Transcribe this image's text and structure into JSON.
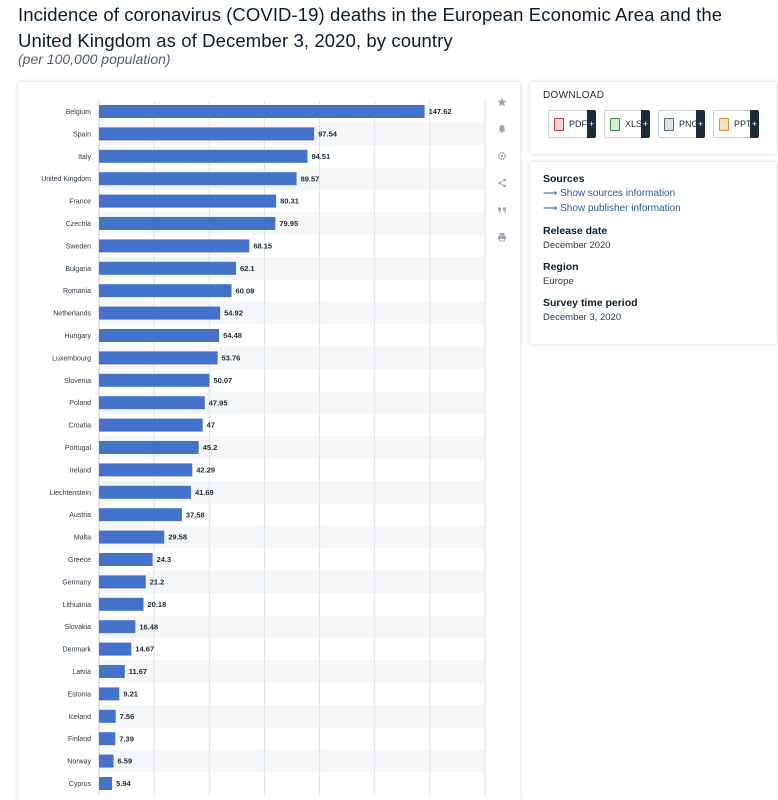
{
  "title": "Incidence of coronavirus (COVID-19) deaths in the European Economic Area and the United Kingdom as of December 3, 2020, by country",
  "subtitle": "(per 100,000 population)",
  "toolbar": {
    "icons": [
      "star-icon",
      "bell-icon",
      "gear-icon",
      "share-icon",
      "quote-icon",
      "print-icon"
    ]
  },
  "download": {
    "title": "DOWNLOAD",
    "buttons": [
      {
        "label": "PDF",
        "icon": "pdf-file-icon",
        "color": "#c8382e"
      },
      {
        "label": "XLS",
        "icon": "xls-file-icon",
        "color": "#3d8b3d"
      },
      {
        "label": "PNG",
        "icon": "png-file-icon",
        "color": "#5b6d7d"
      },
      {
        "label": "PPT",
        "icon": "ppt-file-icon",
        "color": "#e0892a"
      }
    ],
    "plus": "+"
  },
  "info": {
    "sources_heading": "Sources",
    "sources_link": "Show sources information",
    "publisher_link": "Show publisher information",
    "arrow": "⟶",
    "release_heading": "Release date",
    "release_value": "December 2020",
    "region_heading": "Region",
    "region_value": "Europe",
    "survey_heading": "Survey time period",
    "survey_value": "December 3, 2020"
  },
  "chart_data": {
    "type": "bar",
    "orientation": "horizontal",
    "bar_color": "#4472ca",
    "grid": true,
    "xlim": [
      0,
      175
    ],
    "categories": [
      "Belgium",
      "Spain",
      "Italy",
      "United Kingdom",
      "France",
      "Czechia",
      "Sweden",
      "Bulgaria",
      "Romania",
      "Netherlands",
      "Hungary",
      "Luxembourg",
      "Slovenia",
      "Poland",
      "Croatia",
      "Portugal",
      "Ireland",
      "Liechtenstein",
      "Austria",
      "Malta",
      "Greece",
      "Germany",
      "Lithuania",
      "Slovakia",
      "Denmark",
      "Latvia",
      "Estonia",
      "Iceland",
      "Finland",
      "Norway",
      "Cyprus"
    ],
    "values": [
      147.62,
      97.54,
      94.51,
      89.57,
      80.31,
      79.95,
      68.15,
      62.1,
      60.08,
      54.92,
      54.48,
      53.76,
      50.07,
      47.95,
      47,
      45.2,
      42.29,
      41.69,
      37.58,
      29.58,
      24.3,
      21.2,
      20.18,
      16.48,
      14.67,
      11.67,
      9.21,
      7.56,
      7.39,
      6.59,
      5.94
    ],
    "value_labels": [
      "147.62",
      "97.54",
      "94.51",
      "89.57",
      "80.31",
      "79.95",
      "68.15",
      "62.1",
      "60.08",
      "54.92",
      "54.48",
      "53.76",
      "50.07",
      "47.95",
      "47",
      "45.2",
      "42.29",
      "41.69",
      "37.58",
      "29.58",
      "24.3",
      "21.2",
      "20.18",
      "16.48",
      "14.67",
      "11.67",
      "9.21",
      "7.56",
      "7.39",
      "6.59",
      "5.94"
    ]
  }
}
